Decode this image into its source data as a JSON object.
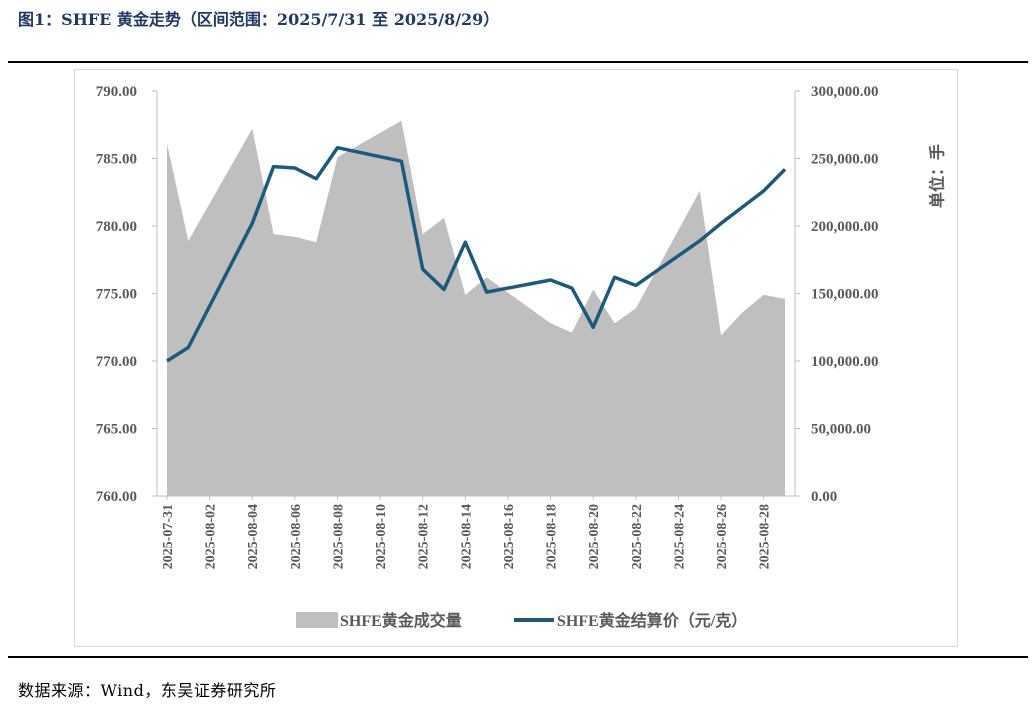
{
  "figure_title": "图1：SHFE 黄金走势（区间范围：2025/7/31 至 2025/8/29）",
  "source": "数据来源：Wind，东吴证券研究所",
  "colors": {
    "area": "#bfbfbf",
    "line": "#1b5a7e",
    "title": "#1f3864",
    "axis_text": "#595959"
  },
  "chart_data": {
    "type": "line",
    "title": "",
    "categories": [
      "2025-07-31",
      "2025-08-01",
      "2025-08-04",
      "2025-08-05",
      "2025-08-06",
      "2025-08-07",
      "2025-08-08",
      "2025-08-11",
      "2025-08-12",
      "2025-08-13",
      "2025-08-14",
      "2025-08-15",
      "2025-08-18",
      "2025-08-19",
      "2025-08-20",
      "2025-08-21",
      "2025-08-22",
      "2025-08-25",
      "2025-08-26",
      "2025-08-27",
      "2025-08-28",
      "2025-08-29"
    ],
    "category_day_offsets": [
      0,
      1,
      4,
      5,
      6,
      7,
      8,
      11,
      12,
      13,
      14,
      15,
      18,
      19,
      20,
      21,
      22,
      25,
      26,
      27,
      28,
      29
    ],
    "x_tick_labels": [
      "2025-07-31",
      "2025-08-02",
      "2025-08-04",
      "2025-08-06",
      "2025-08-08",
      "2025-08-10",
      "2025-08-12",
      "2025-08-14",
      "2025-08-16",
      "2025-08-18",
      "2025-08-20",
      "2025-08-22",
      "2025-08-24",
      "2025-08-26",
      "2025-08-28"
    ],
    "series": [
      {
        "name": "SHFE黄金成交量",
        "chart_type": "area",
        "axis": "right",
        "values": [
          261000,
          189000,
          272000,
          194000,
          192000,
          188000,
          251000,
          278000,
          194000,
          206000,
          149000,
          162000,
          128000,
          121000,
          153000,
          128000,
          139000,
          226000,
          119000,
          136000,
          149000,
          146000
        ]
      },
      {
        "name": "SHFE黄金结算价（元/克）",
        "chart_type": "line",
        "axis": "left",
        "values": [
          770.0,
          771.0,
          780.2,
          784.4,
          784.3,
          783.5,
          785.8,
          784.8,
          776.8,
          775.3,
          778.8,
          775.1,
          776.0,
          775.4,
          772.5,
          776.2,
          775.6,
          778.9,
          780.2,
          781.4,
          782.6,
          784.2
        ]
      }
    ],
    "y_left": {
      "min": 760,
      "max": 790,
      "step": 5,
      "tick_labels": [
        "760.00",
        "765.00",
        "770.00",
        "775.00",
        "780.00",
        "785.00",
        "790.00"
      ]
    },
    "y_right": {
      "min": 0,
      "max": 300000,
      "step": 50000,
      "label": "单位：手",
      "tick_labels": [
        "0.00",
        "50,000.00",
        "100,000.00",
        "150,000.00",
        "200,000.00",
        "250,000.00",
        "300,000.00"
      ]
    },
    "x_range_days": [
      0,
      29
    ],
    "grid": false,
    "legend_position": "bottom"
  }
}
